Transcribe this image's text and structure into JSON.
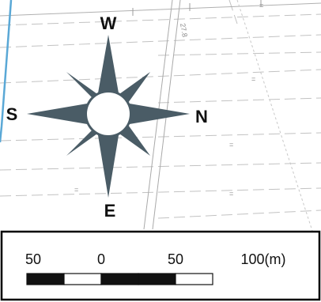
{
  "colors": {
    "compass_fill": "#4a5c66",
    "river": "#5aa8d6",
    "grid_line": "#b8b8b8",
    "dash_line": "#c4c4c4",
    "scale_dark": "#111111",
    "scale_light": "#ffffff",
    "frame": "#000000"
  },
  "compass": {
    "top": "W",
    "left": "S",
    "right": "N",
    "bottom": "E"
  },
  "road_label": "27.8",
  "scale_bar": {
    "tick_labels": [
      "50",
      "0",
      "50",
      "100(m)"
    ],
    "segment_pattern": [
      "dark",
      "light",
      "dark",
      "dark",
      "light"
    ]
  },
  "map_symbols": {
    "parcel_mark": "="
  }
}
